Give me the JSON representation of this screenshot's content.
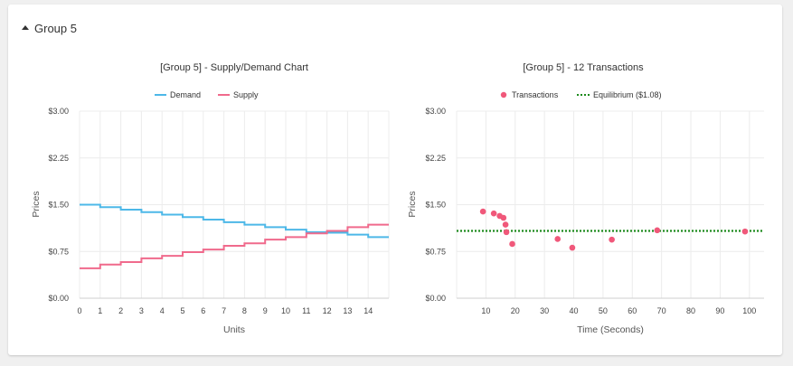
{
  "header": {
    "group_label": "Group 5"
  },
  "colors": {
    "demand": "#4db8e8",
    "supply": "#f06a8c",
    "transactions": "#f0587a",
    "equilibrium": "#1c8a1c"
  },
  "chart_data": [
    {
      "type": "line",
      "title": "[Group 5] - Supply/Demand Chart",
      "xlabel": "Units",
      "ylabel": "Prices",
      "xlim": [
        0,
        15
      ],
      "ylim": [
        0,
        3
      ],
      "x_ticks": [
        "0",
        "1",
        "2",
        "3",
        "4",
        "5",
        "6",
        "7",
        "8",
        "9",
        "10",
        "11",
        "12",
        "13",
        "14"
      ],
      "y_ticks": [
        "$0.00",
        "$0.75",
        "$1.50",
        "$2.25",
        "$3.00"
      ],
      "grid": true,
      "legend": "top-center",
      "step": true,
      "x": [
        0,
        1,
        2,
        3,
        4,
        5,
        6,
        7,
        8,
        9,
        10,
        11,
        12,
        13,
        14
      ],
      "series": [
        {
          "name": "Demand",
          "values": [
            1.5,
            1.46,
            1.42,
            1.38,
            1.34,
            1.3,
            1.26,
            1.22,
            1.18,
            1.14,
            1.1,
            1.06,
            1.05,
            1.02,
            0.98
          ]
        },
        {
          "name": "Supply",
          "values": [
            0.48,
            0.54,
            0.58,
            0.64,
            0.68,
            0.74,
            0.78,
            0.84,
            0.88,
            0.94,
            0.98,
            1.04,
            1.08,
            1.14,
            1.18
          ]
        }
      ]
    },
    {
      "type": "scatter",
      "title": "[Group 5] - 12 Transactions",
      "xlabel": "Time (Seconds)",
      "ylabel": "Prices",
      "xlim": [
        0,
        105
      ],
      "ylim": [
        0,
        3
      ],
      "x_ticks": [
        "10",
        "20",
        "30",
        "40",
        "50",
        "60",
        "70",
        "80",
        "90",
        "100"
      ],
      "y_ticks": [
        "$0.00",
        "$0.75",
        "$1.50",
        "$2.25",
        "$3.00"
      ],
      "grid": true,
      "legend": "top-center",
      "series": [
        {
          "name": "Transactions",
          "points": [
            [
              9,
              1.39
            ],
            [
              12.7,
              1.36
            ],
            [
              14.7,
              1.32
            ],
            [
              16,
              1.29
            ],
            [
              16.7,
              1.18
            ],
            [
              17,
              1.06
            ],
            [
              19,
              0.87
            ],
            [
              34.5,
              0.95
            ],
            [
              39.5,
              0.81
            ],
            [
              53,
              0.94
            ],
            [
              68.5,
              1.09
            ],
            [
              98.5,
              1.07
            ]
          ]
        },
        {
          "name": "Equilibrium ($1.08)",
          "value": 1.08
        }
      ]
    }
  ]
}
